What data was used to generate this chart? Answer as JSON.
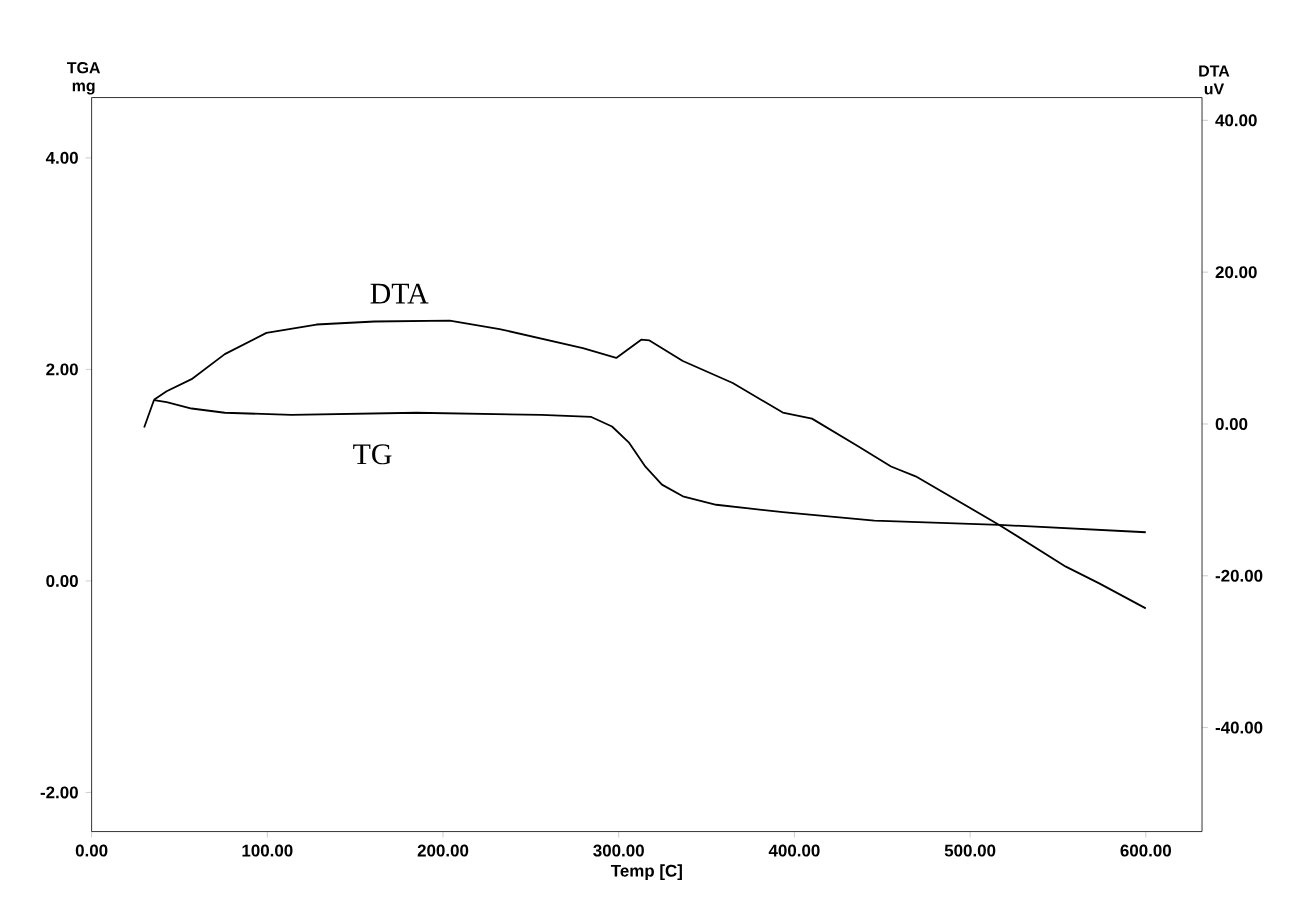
{
  "chart_data": {
    "type": "line",
    "xlabel": "Temp [C]",
    "ylabel": "TGA mg",
    "y2label": "DTA uV",
    "xlim": [
      0,
      632
    ],
    "ylim": [
      -2.37,
      4.57
    ],
    "y2lim": [
      -53.7,
      43.0
    ],
    "xticks": [
      {
        "value": 0,
        "label": "0.00"
      },
      {
        "value": 100,
        "label": "100.00"
      },
      {
        "value": 200,
        "label": "200.00"
      },
      {
        "value": 300,
        "label": "300.00"
      },
      {
        "value": 400,
        "label": "400.00"
      },
      {
        "value": 500,
        "label": "500.00"
      },
      {
        "value": 600,
        "label": "600.00"
      }
    ],
    "yticks": [
      {
        "value": -2,
        "label": "-2.00"
      },
      {
        "value": 0,
        "label": "0.00"
      },
      {
        "value": 2,
        "label": "2.00"
      },
      {
        "value": 4,
        "label": "4.00"
      }
    ],
    "y2ticks": [
      {
        "value": -40,
        "label": "-40.00"
      },
      {
        "value": -20,
        "label": "-20.00"
      },
      {
        "value": 0,
        "label": "0.00"
      },
      {
        "value": 20,
        "label": "20.00"
      },
      {
        "value": 40,
        "label": "40.00"
      }
    ],
    "grid": false,
    "marker": "none",
    "line_style": "solid",
    "series": [
      {
        "color": "#000000",
        "x": [
          29.9,
          35.5,
          42.7,
          56.9,
          75.8,
          113.7,
          184.8,
          255.9,
          284.4,
          296.2,
          305.7,
          315.2,
          324.6,
          336.5,
          355.5,
          393.4,
          445.5,
          516.6,
          600
        ],
        "values": [
          1.45,
          1.71,
          1.69,
          1.63,
          1.59,
          1.57,
          1.59,
          1.57,
          1.55,
          1.46,
          1.31,
          1.08,
          0.91,
          0.8,
          0.72,
          0.65,
          0.57,
          0.53,
          0.46
        ]
      },
      {
        "color": "#000000",
        "axis": "y2",
        "x": [
          35.5,
          42.7,
          56.9,
          75.8,
          99.5,
          128,
          161,
          203.8,
          232.2,
          279.6,
          298.6,
          312.8,
          317.5,
          336.5,
          364.9,
          393.4,
          410,
          436,
          455,
          469,
          516.6,
          554.5,
          573.5,
          600
        ],
        "values": [
          3.2,
          4.3,
          5.9,
          9.2,
          12.0,
          13.1,
          13.5,
          13.6,
          12.5,
          10.0,
          8.7,
          11.1,
          11.0,
          8.3,
          5.4,
          1.5,
          0.7,
          -2.9,
          -5.6,
          -6.9,
          -13.3,
          -18.8,
          -21.0,
          -24.3
        ]
      }
    ],
    "annotations": [
      "DTA",
      "TG"
    ]
  }
}
